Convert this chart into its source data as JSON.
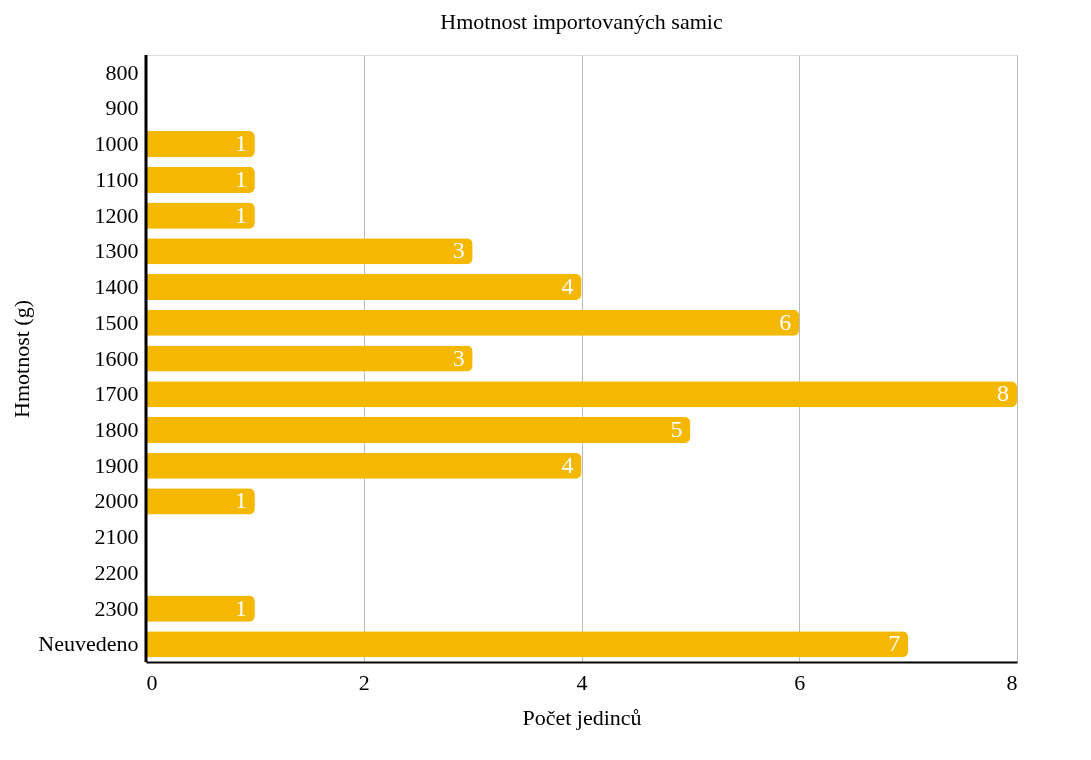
{
  "chart_data": {
    "type": "bar",
    "orientation": "horizontal",
    "title": "Hmotnost importovaných samic",
    "xlabel": "Počet jedinců",
    "ylabel": "Hmotnost (g)",
    "categories": [
      "800",
      "900",
      "1000",
      "1100",
      "1200",
      "1300",
      "1400",
      "1500",
      "1600",
      "1700",
      "1800",
      "1900",
      "2000",
      "2100",
      "2200",
      "2300",
      "Neuvedeno"
    ],
    "values": [
      null,
      null,
      1,
      1,
      1,
      3,
      4,
      6,
      3,
      8,
      5,
      4,
      1,
      null,
      null,
      1,
      7
    ],
    "color": "#f5b800",
    "xlim": [
      0,
      8
    ],
    "xticks": [
      0,
      2,
      4,
      6,
      8
    ],
    "grid": "x",
    "data_labels": true
  }
}
